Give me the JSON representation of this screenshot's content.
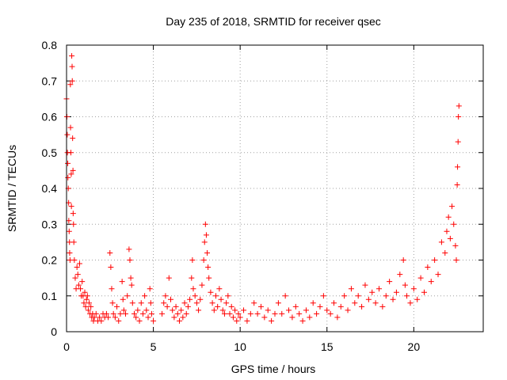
{
  "chart_data": {
    "type": "scatter",
    "title": "Day 235 of 2018, SRMTID for receiver qsec",
    "xlabel": "GPS time / hours",
    "ylabel": "SRMTID / TECUs",
    "xlim": [
      0,
      24
    ],
    "ylim": [
      0,
      0.8
    ],
    "xticks": [
      0,
      5,
      10,
      15,
      20
    ],
    "xtick_labels": [
      "0",
      "5",
      "10",
      "15",
      "20"
    ],
    "yticks": [
      0,
      0.1,
      0.2,
      0.3,
      0.4,
      0.5,
      0.6,
      0.7,
      0.8
    ],
    "ytick_labels": [
      "0",
      "0.1",
      "0.2",
      "0.3",
      "0.4",
      "0.5",
      "0.6",
      "0.7",
      "0.8"
    ],
    "grid": true,
    "marker": "+",
    "color": "#ff0000",
    "series": [
      {
        "name": "SRMTID",
        "points": [
          [
            0.0,
            0.65
          ],
          [
            0.02,
            0.6
          ],
          [
            0.04,
            0.55
          ],
          [
            0.05,
            0.5
          ],
          [
            0.07,
            0.47
          ],
          [
            0.08,
            0.43
          ],
          [
            0.1,
            0.4
          ],
          [
            0.12,
            0.36
          ],
          [
            0.13,
            0.31
          ],
          [
            0.15,
            0.28
          ],
          [
            0.17,
            0.25
          ],
          [
            0.18,
            0.22
          ],
          [
            0.2,
            0.2
          ],
          [
            0.22,
            0.69
          ],
          [
            0.23,
            0.57
          ],
          [
            0.25,
            0.5
          ],
          [
            0.27,
            0.44
          ],
          [
            0.28,
            0.35
          ],
          [
            0.3,
            0.77
          ],
          [
            0.32,
            0.74
          ],
          [
            0.33,
            0.7
          ],
          [
            0.35,
            0.54
          ],
          [
            0.37,
            0.45
          ],
          [
            0.38,
            0.33
          ],
          [
            0.4,
            0.3
          ],
          [
            0.42,
            0.25
          ],
          [
            0.45,
            0.2
          ],
          [
            0.5,
            0.15
          ],
          [
            0.55,
            0.12
          ],
          [
            0.6,
            0.18
          ],
          [
            0.65,
            0.16
          ],
          [
            0.7,
            0.13
          ],
          [
            0.75,
            0.19
          ],
          [
            0.8,
            0.12
          ],
          [
            0.85,
            0.1
          ],
          [
            0.9,
            0.14
          ],
          [
            0.95,
            0.1
          ],
          [
            1.0,
            0.08
          ],
          [
            1.05,
            0.11
          ],
          [
            1.1,
            0.07
          ],
          [
            1.15,
            0.09
          ],
          [
            1.2,
            0.1
          ],
          [
            1.25,
            0.06
          ],
          [
            1.3,
            0.08
          ],
          [
            1.35,
            0.05
          ],
          [
            1.4,
            0.07
          ],
          [
            1.45,
            0.04
          ],
          [
            1.5,
            0.05
          ],
          [
            1.55,
            0.03
          ],
          [
            1.6,
            0.04
          ],
          [
            1.7,
            0.05
          ],
          [
            1.8,
            0.03
          ],
          [
            1.9,
            0.04
          ],
          [
            2.0,
            0.03
          ],
          [
            2.1,
            0.05
          ],
          [
            2.2,
            0.04
          ],
          [
            2.3,
            0.05
          ],
          [
            2.4,
            0.04
          ],
          [
            2.5,
            0.22
          ],
          [
            2.55,
            0.18
          ],
          [
            2.6,
            0.12
          ],
          [
            2.65,
            0.08
          ],
          [
            2.7,
            0.05
          ],
          [
            2.8,
            0.04
          ],
          [
            2.9,
            0.07
          ],
          [
            3.0,
            0.03
          ],
          [
            3.1,
            0.05
          ],
          [
            3.2,
            0.14
          ],
          [
            3.25,
            0.09
          ],
          [
            3.3,
            0.06
          ],
          [
            3.4,
            0.05
          ],
          [
            3.5,
            0.1
          ],
          [
            3.6,
            0.23
          ],
          [
            3.65,
            0.2
          ],
          [
            3.7,
            0.15
          ],
          [
            3.75,
            0.13
          ],
          [
            3.8,
            0.08
          ],
          [
            3.9,
            0.05
          ],
          [
            4.0,
            0.04
          ],
          [
            4.1,
            0.06
          ],
          [
            4.2,
            0.03
          ],
          [
            4.3,
            0.08
          ],
          [
            4.4,
            0.05
          ],
          [
            4.5,
            0.1
          ],
          [
            4.6,
            0.06
          ],
          [
            4.7,
            0.04
          ],
          [
            4.8,
            0.12
          ],
          [
            4.85,
            0.08
          ],
          [
            4.9,
            0.05
          ],
          [
            5.0,
            0.03
          ],
          [
            5.5,
            0.05
          ],
          [
            5.6,
            0.08
          ],
          [
            5.7,
            0.1
          ],
          [
            5.8,
            0.07
          ],
          [
            5.9,
            0.15
          ],
          [
            6.0,
            0.09
          ],
          [
            6.1,
            0.06
          ],
          [
            6.2,
            0.04
          ],
          [
            6.3,
            0.07
          ],
          [
            6.4,
            0.05
          ],
          [
            6.5,
            0.03
          ],
          [
            6.6,
            0.06
          ],
          [
            6.7,
            0.04
          ],
          [
            6.8,
            0.08
          ],
          [
            6.9,
            0.05
          ],
          [
            7.0,
            0.07
          ],
          [
            7.1,
            0.09
          ],
          [
            7.2,
            0.15
          ],
          [
            7.25,
            0.2
          ],
          [
            7.3,
            0.12
          ],
          [
            7.4,
            0.1
          ],
          [
            7.5,
            0.08
          ],
          [
            7.6,
            0.06
          ],
          [
            7.7,
            0.09
          ],
          [
            7.8,
            0.13
          ],
          [
            7.9,
            0.2
          ],
          [
            7.95,
            0.25
          ],
          [
            8.0,
            0.3
          ],
          [
            8.05,
            0.27
          ],
          [
            8.1,
            0.22
          ],
          [
            8.15,
            0.18
          ],
          [
            8.2,
            0.15
          ],
          [
            8.3,
            0.11
          ],
          [
            8.4,
            0.08
          ],
          [
            8.5,
            0.06
          ],
          [
            8.6,
            0.1
          ],
          [
            8.7,
            0.07
          ],
          [
            8.8,
            0.12
          ],
          [
            8.9,
            0.09
          ],
          [
            9.0,
            0.06
          ],
          [
            9.1,
            0.05
          ],
          [
            9.2,
            0.08
          ],
          [
            9.3,
            0.1
          ],
          [
            9.4,
            0.05
          ],
          [
            9.5,
            0.07
          ],
          [
            9.6,
            0.04
          ],
          [
            9.7,
            0.06
          ],
          [
            9.8,
            0.03
          ],
          [
            9.9,
            0.05
          ],
          [
            10.0,
            0.04
          ],
          [
            10.2,
            0.06
          ],
          [
            10.4,
            0.03
          ],
          [
            10.6,
            0.05
          ],
          [
            10.8,
            0.08
          ],
          [
            11.0,
            0.05
          ],
          [
            11.2,
            0.07
          ],
          [
            11.4,
            0.04
          ],
          [
            11.6,
            0.06
          ],
          [
            11.8,
            0.03
          ],
          [
            12.0,
            0.05
          ],
          [
            12.2,
            0.08
          ],
          [
            12.4,
            0.05
          ],
          [
            12.6,
            0.1
          ],
          [
            12.8,
            0.06
          ],
          [
            13.0,
            0.04
          ],
          [
            13.2,
            0.07
          ],
          [
            13.4,
            0.05
          ],
          [
            13.6,
            0.03
          ],
          [
            13.8,
            0.06
          ],
          [
            14.0,
            0.04
          ],
          [
            14.2,
            0.08
          ],
          [
            14.4,
            0.05
          ],
          [
            14.6,
            0.07
          ],
          [
            14.8,
            0.1
          ],
          [
            15.0,
            0.06
          ],
          [
            15.2,
            0.05
          ],
          [
            15.4,
            0.08
          ],
          [
            15.6,
            0.04
          ],
          [
            15.8,
            0.07
          ],
          [
            16.0,
            0.1
          ],
          [
            16.2,
            0.06
          ],
          [
            16.4,
            0.12
          ],
          [
            16.6,
            0.08
          ],
          [
            16.8,
            0.1
          ],
          [
            17.0,
            0.07
          ],
          [
            17.2,
            0.13
          ],
          [
            17.4,
            0.09
          ],
          [
            17.6,
            0.11
          ],
          [
            17.8,
            0.08
          ],
          [
            18.0,
            0.12
          ],
          [
            18.2,
            0.07
          ],
          [
            18.4,
            0.1
          ],
          [
            18.6,
            0.14
          ],
          [
            18.8,
            0.09
          ],
          [
            19.0,
            0.11
          ],
          [
            19.2,
            0.16
          ],
          [
            19.4,
            0.2
          ],
          [
            19.5,
            0.13
          ],
          [
            19.6,
            0.1
          ],
          [
            19.8,
            0.08
          ],
          [
            20.0,
            0.12
          ],
          [
            20.2,
            0.09
          ],
          [
            20.4,
            0.15
          ],
          [
            20.6,
            0.11
          ],
          [
            20.8,
            0.18
          ],
          [
            21.0,
            0.14
          ],
          [
            21.2,
            0.2
          ],
          [
            21.4,
            0.16
          ],
          [
            21.6,
            0.25
          ],
          [
            21.8,
            0.22
          ],
          [
            21.9,
            0.28
          ],
          [
            22.0,
            0.32
          ],
          [
            22.1,
            0.26
          ],
          [
            22.2,
            0.35
          ],
          [
            22.3,
            0.3
          ],
          [
            22.4,
            0.24
          ],
          [
            22.45,
            0.2
          ],
          [
            22.5,
            0.41
          ],
          [
            22.52,
            0.46
          ],
          [
            22.55,
            0.53
          ],
          [
            22.57,
            0.6
          ],
          [
            22.6,
            0.63
          ]
        ]
      }
    ]
  }
}
